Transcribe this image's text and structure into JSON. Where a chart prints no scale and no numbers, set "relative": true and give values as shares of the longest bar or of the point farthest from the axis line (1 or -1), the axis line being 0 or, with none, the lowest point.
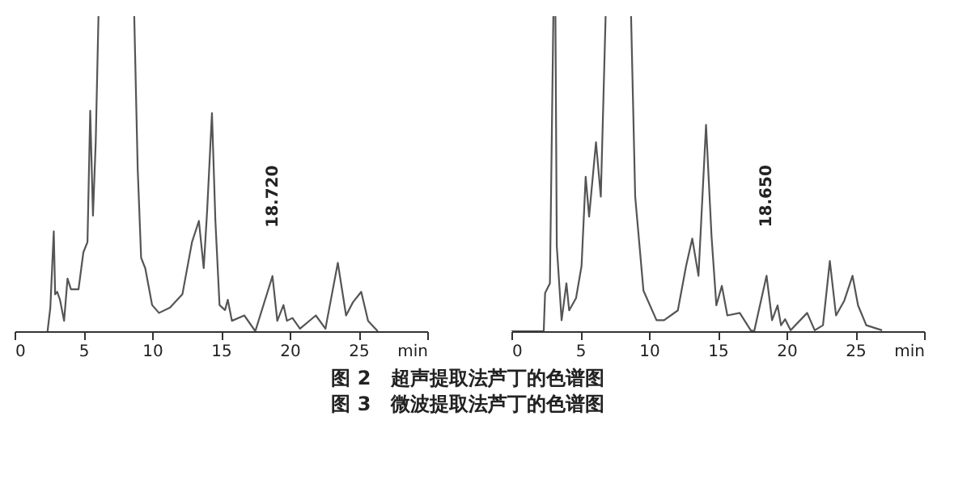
{
  "chart_data": [
    {
      "type": "line",
      "relative": true,
      "xlim": [
        0,
        30
      ],
      "xticks": [
        0,
        5,
        10,
        15,
        20,
        25,
        {
          "value": 30,
          "label": "min"
        }
      ],
      "grid": false,
      "tick_labels": "x",
      "marker": "none",
      "line_style": "solid",
      "x": [
        2.4,
        2.6,
        2.85,
        2.95,
        3.1,
        3.3,
        3.6,
        3.85,
        4.1,
        4.65,
        5.0,
        5.3,
        5.5,
        5.7,
        5.9,
        6.1,
        7.4,
        8.7,
        8.95,
        9.2,
        9.5,
        10.0,
        10.5,
        11.3,
        12.2,
        12.9,
        13.4,
        13.75,
        14.0,
        14.35,
        14.6,
        14.9,
        15.3,
        15.5,
        15.8,
        16.7,
        17.5,
        18.75,
        19.1,
        19.55,
        19.8,
        20.2,
        20.75,
        21.9,
        22.6,
        23.5,
        24.1,
        24.6,
        25.2,
        25.7,
        26.4
      ],
      "series": [
        {
          "color": "#555555",
          "values": [
            0,
            0.075,
            0.317,
            0.117,
            0.125,
            0.1,
            0.033,
            0.167,
            0.133,
            0.133,
            0.25,
            0.283,
            0.7,
            0.367,
            0.6,
            1,
            null,
            1,
            0.517,
            0.233,
            0.2,
            0.083,
            0.058,
            0.075,
            0.117,
            0.283,
            0.35,
            0.2,
            0.383,
            0.692,
            0.35,
            0.083,
            0.067,
            0.1,
            0.033,
            0.05,
            0,
            0.175,
            0.033,
            0.083,
            0.033,
            0.042,
            0.008,
            0.05,
            0.008,
            0.217,
            0.05,
            0.092,
            0.125,
            0.033,
            0
          ]
        }
      ],
      "annotations": [
        {
          "text": "18.720",
          "x": 18.75,
          "y": 0.175
        },
        "图 2　超声提取法芦丁的色谱图"
      ]
    },
    {
      "type": "line",
      "relative": true,
      "xlim": [
        0,
        30
      ],
      "xticks": [
        0,
        5,
        10,
        15,
        20,
        25,
        {
          "value": 30,
          "label": "min"
        }
      ],
      "grid": false,
      "tick_labels": "x",
      "marker": "none",
      "line_style": "solid",
      "x": [
        0,
        2.35,
        2.45,
        2.8,
        3.05,
        3.12,
        3.2,
        3.3,
        3.65,
        4.0,
        4.2,
        4.7,
        5.1,
        5.4,
        5.65,
        6.15,
        6.5,
        6.85,
        7.8,
        8.7,
        9.0,
        9.6,
        10.55,
        11.1,
        12.1,
        12.7,
        13.15,
        13.6,
        14.15,
        14.55,
        14.9,
        15.3,
        15.7,
        16.6,
        17.4,
        17.65,
        18.55,
        18.95,
        19.35,
        19.6,
        19.9,
        20.3,
        21.5,
        22.05,
        22.65,
        23.15,
        23.6,
        24.2,
        24.8,
        25.2,
        25.8,
        26.95
      ],
      "series": [
        {
          "color": "#555555",
          "values": [
            0,
            0,
            0.121,
            0.152,
            1,
            null,
            1,
            0.27,
            0.035,
            0.152,
            0.066,
            0.105,
            0.207,
            0.49,
            0.364,
            0.6,
            0.427,
            1,
            null,
            1,
            0.427,
            0.129,
            0.035,
            0.035,
            0.066,
            0.207,
            0.294,
            0.176,
            0.655,
            0.301,
            0.082,
            0.144,
            0.05,
            0.058,
            0.003,
            0,
            0.176,
            0.035,
            0.082,
            0.019,
            0.038,
            0.003,
            0.058,
            0.003,
            0.019,
            0.223,
            0.05,
            0.097,
            0.176,
            0.082,
            0.019,
            0.003
          ]
        }
      ],
      "annotations": [
        {
          "text": "18.650",
          "x": 18.55,
          "y": 0.176
        },
        "图 3　微波提取法芦丁的色谱图"
      ]
    }
  ]
}
